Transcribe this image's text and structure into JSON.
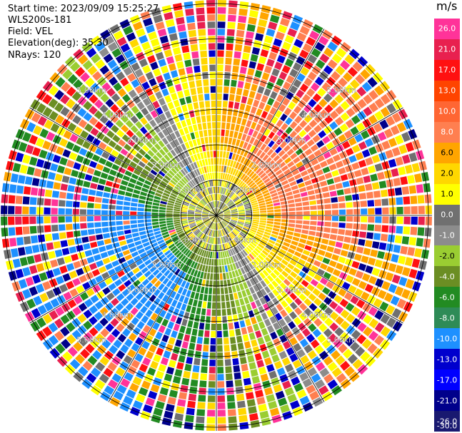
{
  "header": {
    "start_time": "Start time: 2023/09/09 15:25:27",
    "instrument": "WLS200s-181",
    "field": "Field: VEL",
    "elevation": "Elevation(deg): 35.30",
    "nrays": "NRays: 120"
  },
  "colorbar": {
    "unit": "m/s",
    "ticks": [
      "26.0",
      "21.0",
      "17.0",
      "13.0",
      "10.0",
      "8.0",
      "6.0",
      "2.0",
      "1.0",
      "0.0",
      "-1.0",
      "-2.0",
      "-4.0",
      "-6.0",
      "-8.0",
      "-10.0",
      "-13.0",
      "-17.0",
      "-21.0",
      "-26.0",
      "-30.0"
    ],
    "colors": [
      "#ff3399",
      "#e8204f",
      "#ff1111",
      "#ff4400",
      "#ff6633",
      "#ff7f50",
      "#ffa500",
      "#ffd700",
      "#ffff00",
      "#707070",
      "#8c8c8c",
      "#9acd32",
      "#6b8e23",
      "#228b22",
      "#2e8b57",
      "#1e90ff",
      "#0000cd",
      "#0000ff",
      "#00008b",
      "#191970"
    ]
  },
  "chart_data": {
    "type": "ppi",
    "field": "VEL",
    "units": "m/s",
    "nrays": 120,
    "elevation_deg": 35.3,
    "range_rings_km": [
      1,
      2,
      3,
      4,
      5,
      6
    ],
    "ring_labels": [
      "1.00km",
      "2.00km",
      "3.00km",
      "4.00km",
      "5.00km"
    ],
    "radial_line_angles_deg": [
      0,
      30,
      60,
      90,
      120,
      150,
      180,
      210,
      240,
      270,
      300,
      330
    ],
    "max_range_km": 6.1
  }
}
